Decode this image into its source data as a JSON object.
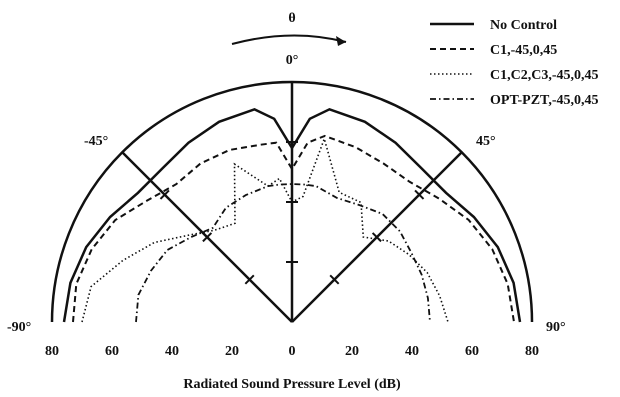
{
  "chart_data": {
    "type": "line",
    "subtype": "polar-half",
    "xlabel": "Radiated Sound Pressure Level (dB)",
    "radial_ticks": [
      "80",
      "60",
      "40",
      "20",
      "0",
      "20",
      "40",
      "60",
      "80"
    ],
    "angle_labels": {
      "theta": "θ",
      "zero": "0°",
      "minus45": "-45°",
      "plus45": "45°",
      "minus90": "-90°",
      "plus90": "90°"
    },
    "r_range": [
      0,
      80
    ],
    "angle_range_deg": [
      -90,
      90
    ],
    "legend_position": "top-right",
    "series": [
      {
        "name": "No Control",
        "style": "solid",
        "angles": [
          -90,
          -80,
          -70,
          -60,
          -50,
          -40,
          -30,
          -20,
          -10,
          -5,
          0,
          5,
          10,
          20,
          30,
          40,
          50,
          60,
          70,
          80,
          90
        ],
        "values": [
          76,
          75,
          73,
          70,
          67,
          67,
          69,
          71,
          72,
          68,
          58,
          68,
          72,
          71,
          69,
          67,
          67,
          70,
          73,
          75,
          76
        ]
      },
      {
        "name": "C1,-45,0,45",
        "style": "dashed",
        "angles": [
          -90,
          -80,
          -70,
          -60,
          -50,
          -40,
          -30,
          -20,
          -10,
          -5,
          0,
          5,
          10,
          20,
          30,
          40,
          50,
          60,
          70,
          80,
          90
        ],
        "values": [
          73,
          73,
          71,
          68,
          63,
          60,
          61,
          61,
          60,
          60,
          51,
          60,
          63,
          62,
          61,
          61,
          64,
          68,
          71,
          73,
          74
        ]
      },
      {
        "name": "C1,C2,C3,-45,0,45",
        "style": "dotted",
        "angles": [
          -90,
          -80,
          -70,
          -60,
          -50,
          -40,
          -30,
          -20,
          -10,
          -5,
          0,
          5,
          10,
          20,
          30,
          40,
          50,
          60,
          70,
          80,
          90
        ],
        "values": [
          70,
          68,
          60,
          53,
          45,
          40,
          38,
          56,
          46,
          48,
          40,
          42,
          62,
          46,
          46,
          37,
          42,
          45,
          48,
          50,
          52
        ]
      },
      {
        "name": "OPT-PZT,-45,0,45",
        "style": "dashdot",
        "angles": [
          -90,
          -80,
          -70,
          -60,
          -50,
          -40,
          -30,
          -20,
          -10,
          -5,
          0,
          5,
          10,
          20,
          30,
          40,
          50,
          60,
          70,
          80,
          90
        ],
        "values": [
          52,
          52,
          50,
          48,
          44,
          41,
          44,
          45,
          46,
          46,
          46,
          46,
          46,
          44,
          45,
          47,
          47,
          46,
          46,
          46,
          46
        ]
      }
    ]
  }
}
